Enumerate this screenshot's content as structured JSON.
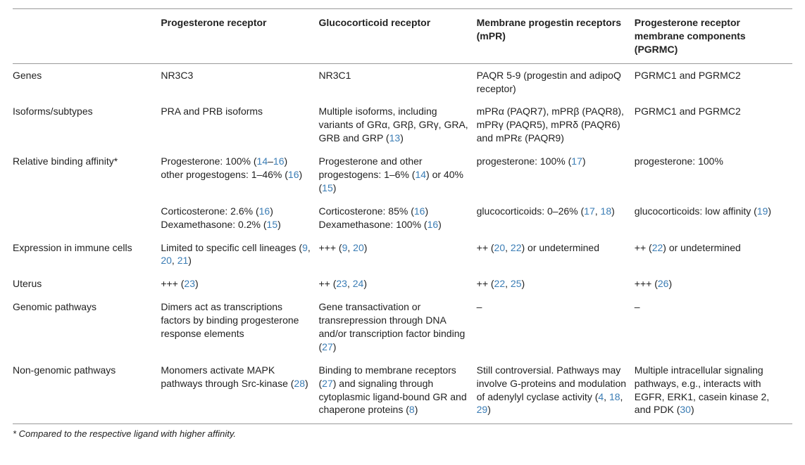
{
  "headers": {
    "c0": "",
    "c1": "Progesterone receptor",
    "c2": "Glucocorticoid receptor",
    "c3": "Membrane progestin receptors (mPR)",
    "c4": "Progesterone receptor membrane components (PGRMC)"
  },
  "rows": {
    "genes": {
      "label": "Genes",
      "c1": "NR3C3",
      "c2": "NR3C1",
      "c3": "PAQR 5-9 (progestin and adipoQ receptor)",
      "c4": "PGRMC1 and PGRMC2"
    },
    "isoforms": {
      "label": "Isoforms/subtypes",
      "c1": "PRA and PRB isoforms",
      "c2_pre": "Multiple isoforms, including variants of GRα, GRβ, GRγ, GRA, GRB and GRP (",
      "c2_ref": "13",
      "c2_post": ")",
      "c3": "mPRα (PAQR7), mPRβ (PAQR8), mPRγ (PAQR5), mPRδ (PAQR6) and mPRε (PAQR9)",
      "c4": "PGRMC1 and PGRMC2"
    },
    "rba1": {
      "label": "Relative binding affinity*",
      "c1_a": "Progesterone: 100% (",
      "c1_r1": "14",
      "c1_b": "–",
      "c1_r2": "16",
      "c1_c": ") other progestogens: 1–46% (",
      "c1_r3": "16",
      "c1_d": ")",
      "c2_a": "Progesterone and other progestogens: 1–6% (",
      "c2_r1": "14",
      "c2_b": ") or 40% (",
      "c2_r2": "15",
      "c2_c": ")",
      "c3_a": "progesterone: 100% (",
      "c3_r1": "17",
      "c3_b": ")",
      "c4": "progesterone: 100%"
    },
    "rba2": {
      "c1_a": "Corticosterone: 2.6% (",
      "c1_r1": "16",
      "c1_b": ") Dexamethasone: 0.2% (",
      "c1_r2": "15",
      "c1_c": ")",
      "c2_a": "Corticosterone: 85% (",
      "c2_r1": "16",
      "c2_b": ") Dexamethasone: 100% (",
      "c2_r2": "16",
      "c2_c": ")",
      "c3_a": "glucocorticoids: 0–26% (",
      "c3_r1": "17",
      "c3_b": ", ",
      "c3_r2": "18",
      "c3_c": ")",
      "c4_a": "glucocorticoids: low affinity (",
      "c4_r1": "19",
      "c4_b": ")"
    },
    "immune": {
      "label": "Expression in immune cells",
      "c1_a": "Limited to specific cell lineages (",
      "c1_r1": "9",
      "c1_b": ", ",
      "c1_r2": "20",
      "c1_c": ", ",
      "c1_r3": "21",
      "c1_d": ")",
      "c2_a": "+++ (",
      "c2_r1": "9",
      "c2_b": ", ",
      "c2_r2": "20",
      "c2_c": ")",
      "c3_a": "++ (",
      "c3_r1": "20",
      "c3_b": ", ",
      "c3_r2": "22",
      "c3_c": ") or undetermined",
      "c4_a": "++ (",
      "c4_r1": "22",
      "c4_b": ") or undetermined"
    },
    "uterus": {
      "label": "Uterus",
      "c1_a": "+++ (",
      "c1_r1": "23",
      "c1_b": ")",
      "c2_a": "++ (",
      "c2_r1": "23",
      "c2_b": ", ",
      "c2_r2": "24",
      "c2_c": ")",
      "c3_a": "++ (",
      "c3_r1": "22",
      "c3_b": ", ",
      "c3_r2": "25",
      "c3_c": ")",
      "c4_a": "+++ (",
      "c4_r1": "26",
      "c4_b": ")"
    },
    "genomic": {
      "label": "Genomic pathways",
      "c1": "Dimers act as transcriptions factors by binding progesterone response elements",
      "c2_a": "Gene transactivation or transrepression through DNA and/or transcription factor binding (",
      "c2_r1": "27",
      "c2_b": ")",
      "c3": "–",
      "c4": "–"
    },
    "nongenomic": {
      "label": "Non-genomic pathways",
      "c1_a": "Monomers activate MAPK pathways through Src-kinase (",
      "c1_r1": "28",
      "c1_b": ")",
      "c2_a": "Binding to membrane receptors (",
      "c2_r1": "27",
      "c2_b": ") and signaling through cytoplasmic ligand-bound GR and chaperone proteins (",
      "c2_r2": "8",
      "c2_c": ")",
      "c3_a": "Still controversial. Pathways may involve G-proteins and modulation of adenylyl cyclase activity (",
      "c3_r1": "4",
      "c3_b": ", ",
      "c3_r2": "18",
      "c3_c": ", ",
      "c3_r3": "29",
      "c3_d": ")",
      "c4_a": "Multiple intracellular signaling pathways, e.g., interacts with EGFR, ERK1, casein kinase 2, and PDK (",
      "c4_r1": "30",
      "c4_b": ")"
    }
  },
  "footnote": "* Compared to the respective ligand with higher affinity."
}
